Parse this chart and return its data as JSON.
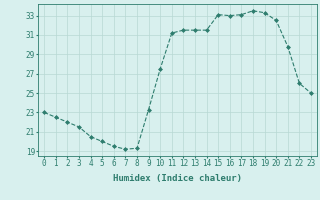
{
  "x": [
    0,
    1,
    2,
    3,
    4,
    5,
    6,
    7,
    8,
    9,
    10,
    11,
    12,
    13,
    14,
    15,
    16,
    17,
    18,
    19,
    20,
    21,
    22,
    23
  ],
  "y": [
    23,
    22.5,
    22,
    21.5,
    20.5,
    20,
    19.5,
    19.2,
    19.3,
    23.3,
    27.5,
    31.2,
    31.5,
    31.5,
    31.5,
    33.1,
    33.0,
    33.1,
    33.5,
    33.3,
    32.5,
    29.8,
    26.0,
    25.0
  ],
  "line_color": "#2e7d6e",
  "marker": "D",
  "marker_size": 2.0,
  "bg_color": "#d8f0ee",
  "grid_color": "#b8d8d4",
  "xlabel": "Humidex (Indice chaleur)",
  "xlim": [
    -0.5,
    23.5
  ],
  "ylim": [
    18.5,
    34.2
  ],
  "yticks": [
    19,
    21,
    23,
    25,
    27,
    29,
    31,
    33
  ],
  "xticks": [
    0,
    1,
    2,
    3,
    4,
    5,
    6,
    7,
    8,
    9,
    10,
    11,
    12,
    13,
    14,
    15,
    16,
    17,
    18,
    19,
    20,
    21,
    22,
    23
  ],
  "xtick_labels": [
    "0",
    "1",
    "2",
    "3",
    "4",
    "5",
    "6",
    "7",
    "8",
    "9",
    "10",
    "11",
    "12",
    "13",
    "14",
    "15",
    "16",
    "17",
    "18",
    "19",
    "20",
    "21",
    "22",
    "23"
  ],
  "spine_color": "#2e7d6e",
  "tick_color": "#2e7d6e",
  "label_fontsize": 6.5,
  "tick_fontsize": 5.5
}
